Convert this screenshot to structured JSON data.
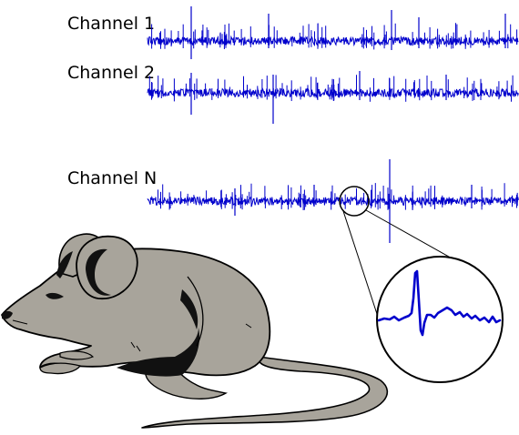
{
  "channels": [
    {
      "label": "Channel 1"
    },
    {
      "label": "Channel 2"
    },
    {
      "label": "Channel N"
    }
  ],
  "colors": {
    "trace": "#0000cc",
    "mouse_body": "#a8a49b",
    "mouse_outline": "#000000",
    "background": "#ffffff"
  }
}
